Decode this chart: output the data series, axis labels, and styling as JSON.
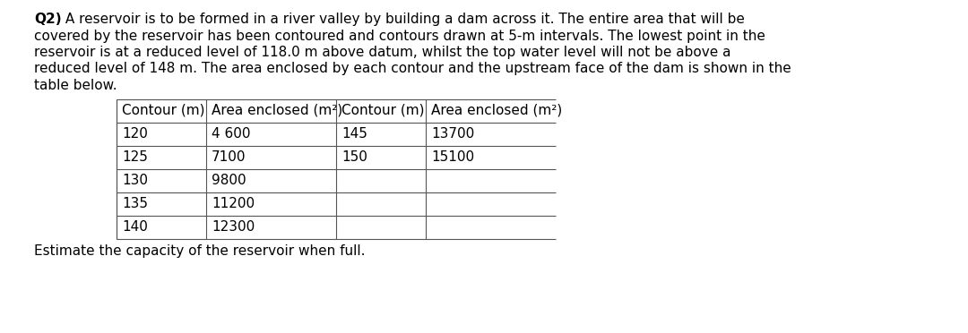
{
  "title_bold": "Q2)",
  "title_rest_line1": " A reservoir is to be formed in a river valley by building a dam across it. The entire area that will be",
  "title_lines": [
    "covered by the reservoir has been contoured and contours drawn at 5-m intervals. The lowest point in the",
    "reservoir is at a reduced level of 118.0 m above datum, whilst the top water level will not be above a",
    "reduced level of 148 m. The area enclosed by each contour and the upstream face of the dam is shown in the",
    "table below."
  ],
  "footer_text": "Estimate the capacity of the reservoir when full.",
  "table_col_headers": [
    "Contour (m)",
    "Area enclosed (m²)",
    "Contour (m)",
    "Area enclosed (m²)"
  ],
  "table_data": [
    [
      "120",
      "4 600",
      "145",
      "13700"
    ],
    [
      "125",
      "7100",
      "150",
      "15100"
    ],
    [
      "130",
      "9800",
      "",
      ""
    ],
    [
      "135",
      "11200",
      "",
      ""
    ],
    [
      "140",
      "12300",
      "",
      ""
    ]
  ],
  "bg_color": "#ffffff",
  "text_color": "#000000",
  "body_fontsize": 11.0,
  "table_fontsize": 11.0
}
